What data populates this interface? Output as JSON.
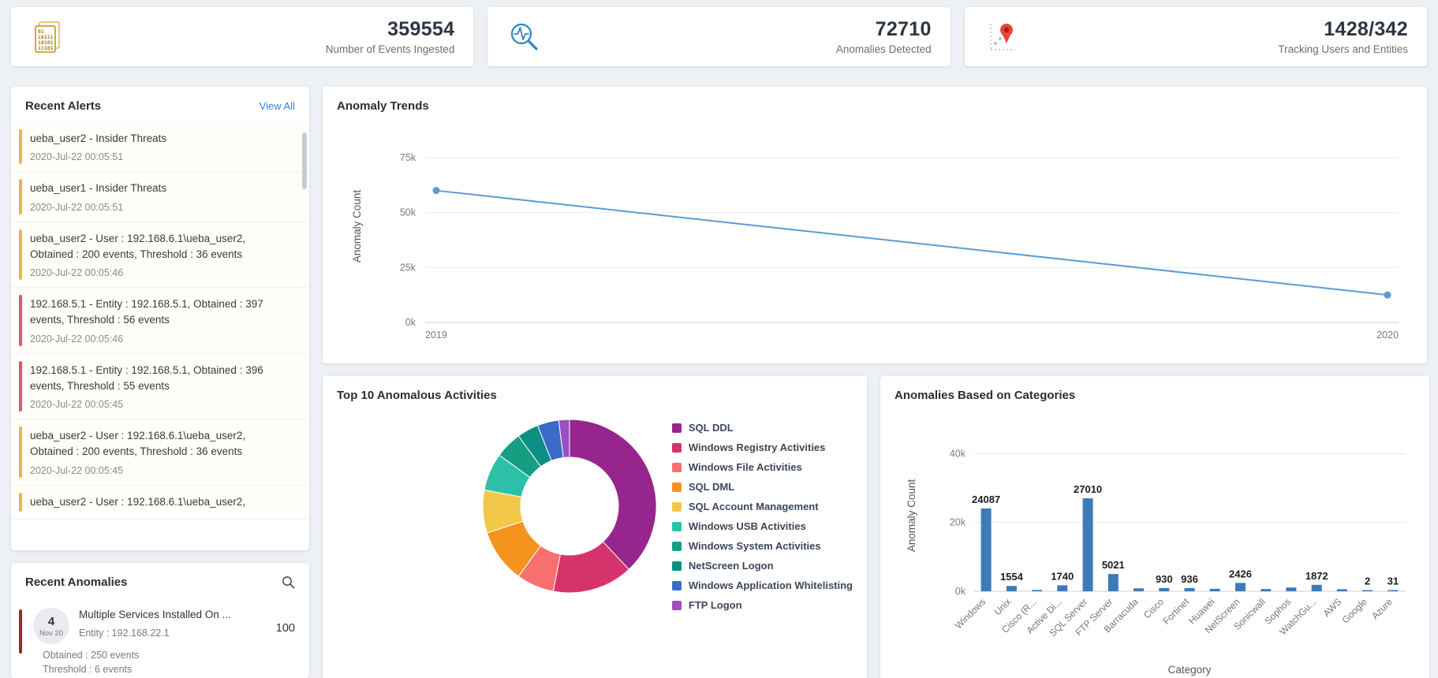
{
  "colors": {
    "accent_link": "#3583d6",
    "severity": {
      "yellow": "#f0b440",
      "red": "#e25757",
      "maroon": "#9c2b21"
    }
  },
  "stats": [
    {
      "value": "359554",
      "label": "Number of Events Ingested",
      "icon": "events-document-icon"
    },
    {
      "value": "72710",
      "label": "Anomalies Detected",
      "icon": "anomaly-search-icon"
    },
    {
      "value": "1428/342",
      "label": "Tracking Users and Entities",
      "icon": "tracking-pin-icon"
    }
  ],
  "recent_alerts": {
    "title": "Recent Alerts",
    "view_all": "View All",
    "items": [
      {
        "severity": "yellow",
        "title": "ueba_user2 - Insider Threats",
        "time": "2020-Jul-22 00:05:51"
      },
      {
        "severity": "yellow",
        "title": "ueba_user1 - Insider Threats",
        "time": "2020-Jul-22 00:05:51"
      },
      {
        "severity": "yellow",
        "title": "ueba_user2 - User : 192.168.6.1\\ueba_user2, Obtained : 200 events, Threshold : 36 events",
        "time": "2020-Jul-22 00:05:46"
      },
      {
        "severity": "red",
        "title": "192.168.5.1 - Entity : 192.168.5.1, Obtained : 397 events, Threshold : 56 events",
        "time": "2020-Jul-22 00:05:46"
      },
      {
        "severity": "red",
        "title": "192.168.5.1 - Entity : 192.168.5.1, Obtained : 396 events, Threshold : 55 events",
        "time": "2020-Jul-22 00:05:45"
      },
      {
        "severity": "yellow",
        "title": "ueba_user2 - User : 192.168.6.1\\ueba_user2, Obtained : 200 events, Threshold : 36 events",
        "time": "2020-Jul-22 00:05:45"
      },
      {
        "severity": "yellow",
        "title": "ueba_user2 - User : 192.168.6.1\\ueba_user2,",
        "time": ""
      }
    ]
  },
  "recent_anomalies": {
    "title": "Recent Anomalies",
    "items": [
      {
        "date_day": "4",
        "date_month": "Nov 20",
        "title": "Multiple Services Installed On ...",
        "entity": "Entity : 192.168.22.1",
        "score": "100",
        "obtained": "Obtained : 250 events",
        "threshold": "Threshold : 6 events",
        "severity": "maroon"
      }
    ]
  },
  "chart_data": [
    {
      "id": "anomaly_trends",
      "type": "line",
      "title": "Anomaly Trends",
      "x": [
        "2019",
        "2020"
      ],
      "values": [
        60000,
        12500
      ],
      "ylabel": "Anomaly Count",
      "yticks": [
        0,
        25000,
        50000,
        75000
      ],
      "ytick_labels": [
        "0k",
        "25k",
        "50k",
        "75k"
      ],
      "ylim": [
        0,
        87500
      ],
      "grid": true,
      "legend_position": "none",
      "line_color": "#5b9bd5"
    },
    {
      "id": "top_activities",
      "type": "pie",
      "title": "Top 10 Anomalous Activities",
      "donut": true,
      "labels": [
        "SQL DDL",
        "Windows Registry Activities",
        "Windows File Activities",
        "SQL DML",
        "SQL Account Management",
        "Windows USB Activities",
        "Windows System Activities",
        "NetScreen Logon",
        "Windows Application Whitelisting",
        "FTP Logon"
      ],
      "values": [
        38,
        15,
        7,
        10,
        8,
        7,
        5,
        4,
        4,
        2
      ],
      "colors": [
        "#96258d",
        "#d6336c",
        "#f76f6f",
        "#f5931f",
        "#f2c84b",
        "#2cc0a6",
        "#169e82",
        "#0b8f85",
        "#3a6bc9",
        "#9a4fc4"
      ],
      "legend_position": "right"
    },
    {
      "id": "categories",
      "type": "bar",
      "title": "Anomalies Based on Categories",
      "categories": [
        "Windows",
        "Unix",
        "Cisco (R...",
        "Active Di...",
        "SQL Server",
        "FTP Server",
        "Barracuda",
        "Cisco",
        "Fortinet",
        "Huawei",
        "NetScreen",
        "Sonicwall",
        "Sophos",
        "WatchGu...",
        "AWS",
        "Google",
        "Azure"
      ],
      "values": [
        24087,
        1554,
        400,
        1740,
        27010,
        5021,
        850,
        930,
        936,
        700,
        2426,
        650,
        1100,
        1872,
        600,
        2,
        31
      ],
      "value_labels": [
        "24087",
        "1554",
        "",
        "1740",
        "27010",
        "5021",
        "",
        "930",
        "936",
        "",
        "2426",
        "",
        "",
        "1872",
        "",
        "2",
        "31"
      ],
      "xlabel": "Category",
      "ylabel": "Anomaly Count",
      "yticks": [
        0,
        20000,
        40000
      ],
      "ytick_labels": [
        "0k",
        "20k",
        "40k"
      ],
      "ylim": [
        0,
        44000
      ],
      "grid": true,
      "bar_color": "#3d7ab8"
    }
  ]
}
